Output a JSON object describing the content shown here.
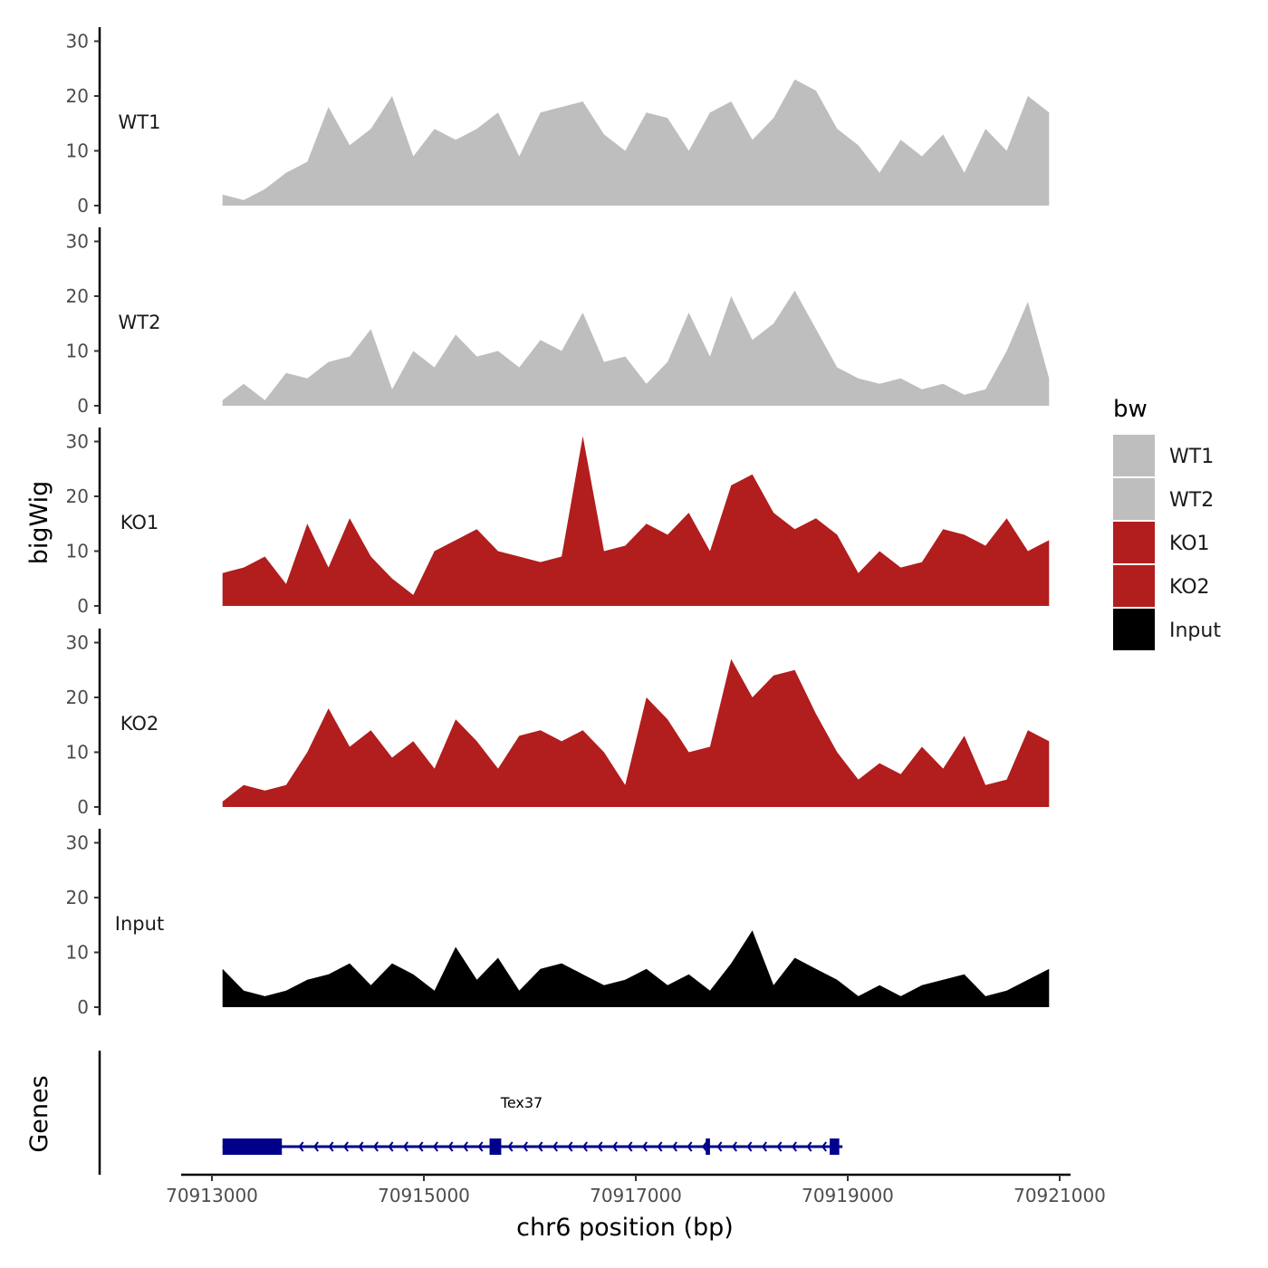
{
  "chart_data": {
    "type": "area",
    "region": {
      "chromosome": "chr6",
      "xlim": [
        70912900,
        70921000
      ]
    },
    "xlabel": "chr6 position (bp)",
    "xticks": [
      70913000,
      70915000,
      70917000,
      70919000,
      70921000
    ],
    "ylabel": "bigWig",
    "ylim": [
      0,
      32
    ],
    "yticks": [
      0,
      10,
      20,
      30
    ],
    "genes_label": "Genes",
    "legend": {
      "title": "bw",
      "entries": [
        {
          "name": "WT1",
          "color": "#bebebe"
        },
        {
          "name": "WT2",
          "color": "#bebebe"
        },
        {
          "name": "KO1",
          "color": "#b21d1e"
        },
        {
          "name": "KO2",
          "color": "#b21d1e"
        },
        {
          "name": "Input",
          "color": "#000000"
        }
      ]
    },
    "x": [
      70913100,
      70913300,
      70913500,
      70913700,
      70913900,
      70914100,
      70914300,
      70914500,
      70914700,
      70914900,
      70915100,
      70915300,
      70915500,
      70915700,
      70915900,
      70916100,
      70916300,
      70916500,
      70916700,
      70916900,
      70917100,
      70917300,
      70917500,
      70917700,
      70917900,
      70918100,
      70918300,
      70918500,
      70918700,
      70918900,
      70919100,
      70919300,
      70919500,
      70919700,
      70919900,
      70920100,
      70920300,
      70920500,
      70920700,
      70920900
    ],
    "series": [
      {
        "name": "WT1",
        "color": "#bebebe",
        "values": [
          2,
          1,
          3,
          6,
          8,
          18,
          11,
          14,
          20,
          9,
          14,
          12,
          14,
          17,
          9,
          17,
          18,
          19,
          13,
          10,
          17,
          16,
          10,
          17,
          19,
          12,
          16,
          23,
          21,
          14,
          11,
          6,
          12,
          9,
          13,
          6,
          14,
          10,
          20,
          17
        ]
      },
      {
        "name": "WT2",
        "color": "#bebebe",
        "values": [
          1,
          4,
          1,
          6,
          5,
          8,
          9,
          14,
          3,
          10,
          7,
          13,
          9,
          10,
          7,
          12,
          10,
          17,
          8,
          9,
          4,
          8,
          17,
          9,
          20,
          12,
          15,
          21,
          14,
          7,
          5,
          4,
          5,
          3,
          4,
          2,
          3,
          10,
          19,
          5
        ]
      },
      {
        "name": "KO1",
        "color": "#b21d1e",
        "values": [
          6,
          7,
          9,
          4,
          15,
          7,
          16,
          9,
          5,
          2,
          10,
          12,
          14,
          10,
          9,
          8,
          9,
          31,
          10,
          11,
          15,
          13,
          17,
          10,
          22,
          24,
          17,
          14,
          16,
          13,
          6,
          10,
          7,
          8,
          14,
          13,
          11,
          16,
          10,
          12
        ]
      },
      {
        "name": "KO2",
        "color": "#b21d1e",
        "values": [
          1,
          4,
          3,
          4,
          10,
          18,
          11,
          14,
          9,
          12,
          7,
          16,
          12,
          7,
          13,
          14,
          12,
          14,
          10,
          4,
          20,
          16,
          10,
          11,
          27,
          20,
          24,
          25,
          17,
          10,
          5,
          8,
          6,
          11,
          7,
          13,
          4,
          5,
          14,
          12
        ]
      },
      {
        "name": "Input",
        "color": "#000000",
        "values": [
          7,
          3,
          2,
          3,
          5,
          6,
          8,
          4,
          8,
          6,
          3,
          11,
          5,
          9,
          3,
          7,
          8,
          6,
          4,
          5,
          7,
          4,
          6,
          3,
          8,
          14,
          4,
          9,
          7,
          5,
          2,
          4,
          2,
          4,
          5,
          6,
          2,
          3,
          5,
          7
        ]
      }
    ],
    "gene": {
      "name": "Tex37",
      "color": "#00008b",
      "strand": "-",
      "start": 70913100,
      "end": 70918950,
      "exons": [
        [
          70913100,
          70913660
        ],
        [
          70915620,
          70915730
        ],
        [
          70917660,
          70917700
        ],
        [
          70918830,
          70918920
        ]
      ]
    }
  }
}
